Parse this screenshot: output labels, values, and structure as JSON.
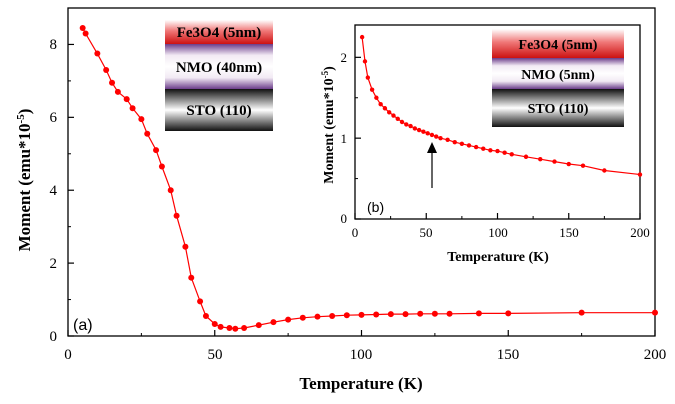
{
  "chart_data": [
    {
      "type": "line",
      "panel": "(a)",
      "xlabel": "Temperature (K)",
      "ylabel_main": "Moment (emu*10",
      "ylabel_sup": "-5",
      "ylabel_end": ")",
      "xlim": [
        0,
        200
      ],
      "ylim": [
        0,
        9
      ],
      "xticks": [
        "0",
        "50",
        "100",
        "150",
        "200"
      ],
      "yticks": [
        "0",
        "2",
        "4",
        "6",
        "8"
      ],
      "layers": [
        "Fe3O4 (5nm)",
        "NMO (40nm)",
        "STO (110)"
      ],
      "color": "#ff0000",
      "series": [
        {
          "x": [
            5,
            6,
            10,
            13,
            15,
            17,
            20,
            22,
            25,
            27,
            30,
            32,
            35,
            37,
            40,
            42,
            45,
            47,
            50,
            52,
            55,
            57,
            60,
            65,
            70,
            75,
            80,
            85,
            90,
            95,
            100,
            105,
            110,
            115,
            120,
            125,
            130,
            140,
            150,
            175,
            200
          ],
          "y": [
            8.45,
            8.3,
            7.75,
            7.3,
            6.95,
            6.7,
            6.5,
            6.25,
            5.95,
            5.55,
            5.1,
            4.65,
            4.0,
            3.3,
            2.45,
            1.6,
            0.95,
            0.55,
            0.33,
            0.25,
            0.22,
            0.2,
            0.22,
            0.3,
            0.38,
            0.45,
            0.5,
            0.53,
            0.55,
            0.57,
            0.58,
            0.59,
            0.6,
            0.6,
            0.61,
            0.61,
            0.61,
            0.62,
            0.62,
            0.64,
            0.64
          ]
        }
      ]
    },
    {
      "type": "line",
      "panel": "(b)",
      "xlabel": "Temperature (K)",
      "ylabel_main": "Moment (emu*10",
      "ylabel_sup": "-5",
      "ylabel_end": ")",
      "xlim": [
        0,
        200
      ],
      "ylim": [
        0,
        2.4
      ],
      "xticks": [
        "0",
        "50",
        "100",
        "150",
        "200"
      ],
      "yticks": [
        "0",
        "1",
        "2"
      ],
      "layers": [
        "Fe3O4 (5nm)",
        "NMO (5nm)",
        "STO (110)"
      ],
      "arrow_at_x": 50,
      "color": "#ff0000",
      "series": [
        {
          "x": [
            5,
            7,
            9,
            12,
            15,
            18,
            21,
            24,
            27,
            30,
            33,
            36,
            39,
            42,
            45,
            48,
            51,
            54,
            57,
            60,
            65,
            70,
            75,
            80,
            85,
            90,
            95,
            100,
            105,
            110,
            120,
            130,
            140,
            150,
            160,
            175,
            200
          ],
          "y": [
            2.25,
            1.95,
            1.75,
            1.6,
            1.5,
            1.42,
            1.37,
            1.32,
            1.28,
            1.24,
            1.2,
            1.17,
            1.15,
            1.12,
            1.1,
            1.08,
            1.06,
            1.04,
            1.02,
            1.0,
            0.98,
            0.95,
            0.93,
            0.91,
            0.89,
            0.87,
            0.85,
            0.84,
            0.82,
            0.8,
            0.77,
            0.74,
            0.71,
            0.68,
            0.66,
            0.6,
            0.55
          ]
        }
      ]
    }
  ]
}
